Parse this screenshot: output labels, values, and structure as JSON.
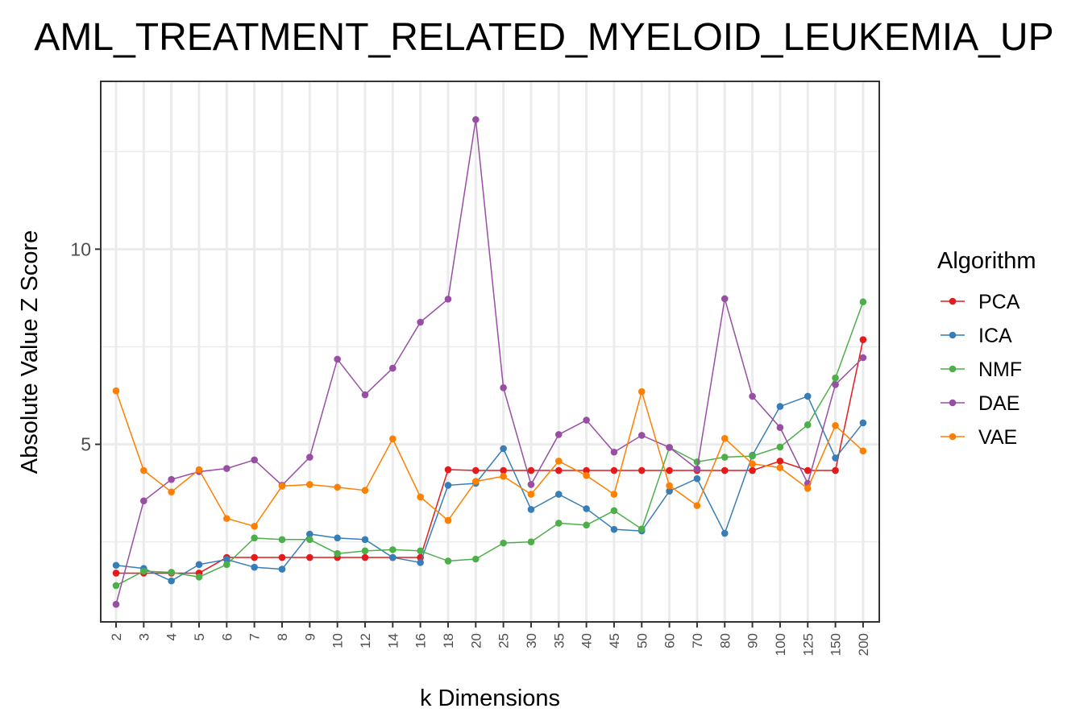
{
  "chart_data": {
    "type": "line",
    "title": "AML_TREATMENT_RELATED_MYELOID_LEUKEMIA_UP",
    "xlabel": "k Dimensions",
    "ylabel": "Absolute Value Z Score",
    "categories": [
      "2",
      "3",
      "4",
      "5",
      "6",
      "7",
      "8",
      "9",
      "10",
      "12",
      "14",
      "16",
      "18",
      "20",
      "25",
      "30",
      "35",
      "40",
      "45",
      "50",
      "60",
      "70",
      "80",
      "90",
      "100",
      "125",
      "150",
      "200"
    ],
    "yticks": [
      5,
      10
    ],
    "ytick_labels": [
      "5",
      "10"
    ],
    "ylim": [
      0.45,
      14.3
    ],
    "grid": true,
    "legend_title": "Algorithm",
    "legend_position": "right",
    "series": [
      {
        "name": "PCA",
        "color": "#e41a1c",
        "values": [
          1.7,
          1.7,
          1.7,
          1.7,
          2.1,
          2.1,
          2.1,
          2.1,
          2.1,
          2.1,
          2.1,
          2.1,
          4.35,
          4.33,
          4.33,
          4.33,
          4.33,
          4.33,
          4.33,
          4.33,
          4.33,
          4.33,
          4.33,
          4.33,
          4.57,
          4.33,
          4.33,
          7.68
        ]
      },
      {
        "name": "ICA",
        "color": "#377eb8",
        "values": [
          1.9,
          1.82,
          1.5,
          1.92,
          2.05,
          1.85,
          1.8,
          2.7,
          2.6,
          2.56,
          2.1,
          1.97,
          3.95,
          4.0,
          4.89,
          3.33,
          3.72,
          3.35,
          2.82,
          2.78,
          3.8,
          4.12,
          2.72,
          4.72,
          5.97,
          6.23,
          4.65,
          5.55
        ]
      },
      {
        "name": "NMF",
        "color": "#4daf4a",
        "values": [
          1.38,
          1.75,
          1.72,
          1.6,
          1.92,
          2.6,
          2.56,
          2.56,
          2.2,
          2.27,
          2.3,
          2.27,
          2.01,
          2.06,
          2.47,
          2.5,
          2.98,
          2.93,
          3.3,
          2.83,
          4.92,
          4.55,
          4.67,
          4.7,
          4.93,
          5.5,
          6.7,
          8.65
        ]
      },
      {
        "name": "DAE",
        "color": "#984ea3",
        "values": [
          0.9,
          3.55,
          4.1,
          4.3,
          4.38,
          4.6,
          3.95,
          4.67,
          7.18,
          6.27,
          6.95,
          8.13,
          8.72,
          13.32,
          6.45,
          3.97,
          5.25,
          5.62,
          4.8,
          5.23,
          4.92,
          4.37,
          8.73,
          6.23,
          5.43,
          4.0,
          6.53,
          7.22
        ]
      },
      {
        "name": "VAE",
        "color": "#ff7f00",
        "values": [
          6.37,
          4.33,
          3.78,
          4.35,
          3.1,
          2.9,
          3.93,
          3.97,
          3.9,
          3.82,
          5.14,
          3.65,
          3.05,
          4.05,
          4.18,
          3.72,
          4.57,
          4.2,
          3.72,
          6.35,
          3.94,
          3.43,
          5.15,
          4.5,
          4.4,
          3.87,
          5.48,
          4.83
        ]
      }
    ]
  }
}
